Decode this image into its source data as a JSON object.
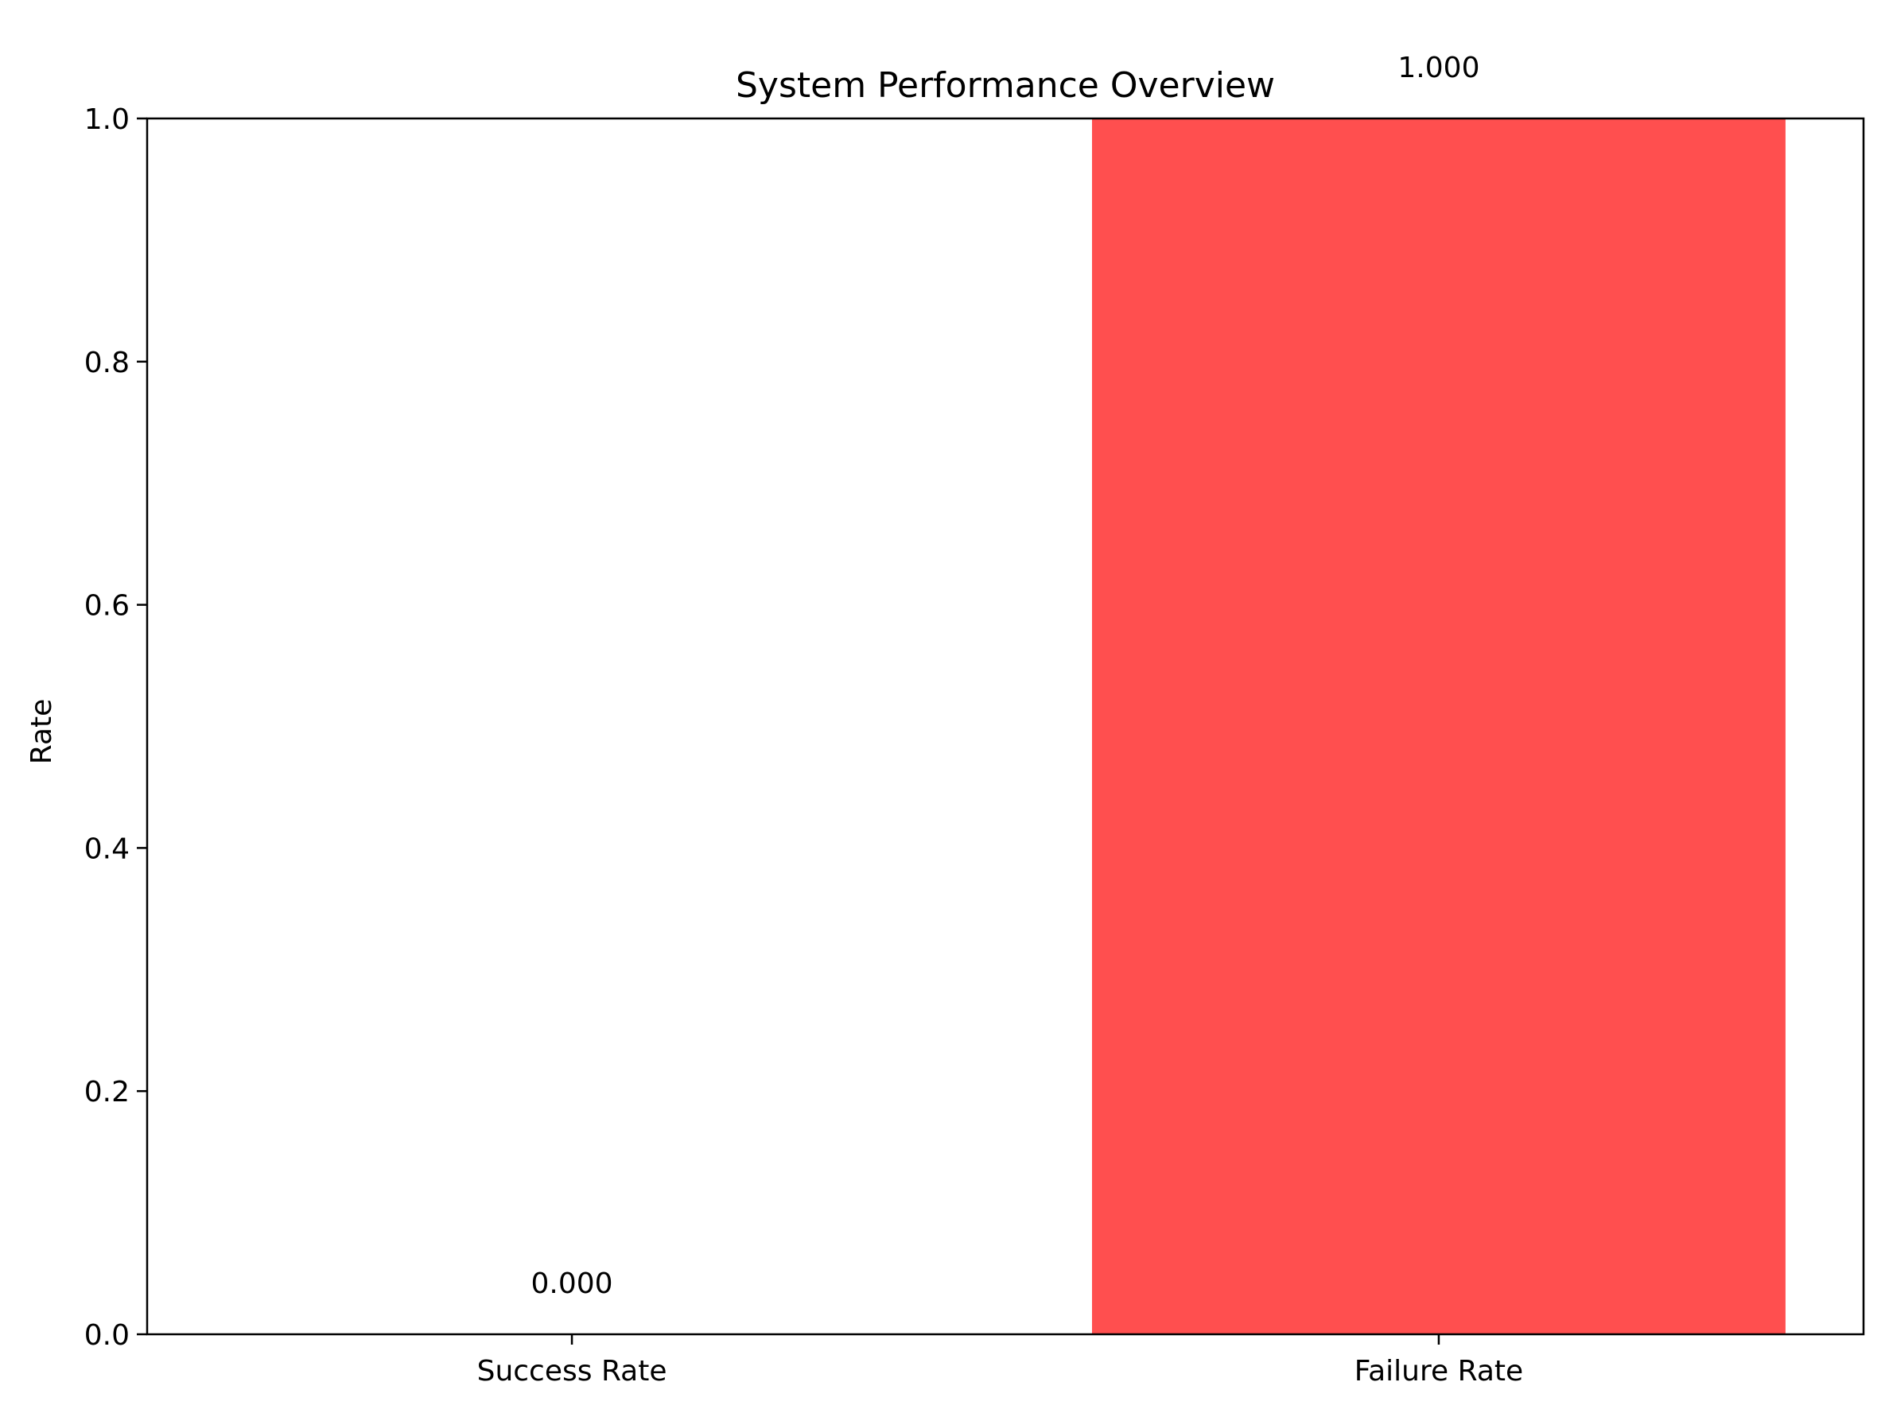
{
  "chart_data": {
    "type": "bar",
    "title": "System Performance Overview",
    "xlabel": "",
    "ylabel": "Rate",
    "categories": [
      "Success Rate",
      "Failure Rate"
    ],
    "values": [
      0.0,
      1.0
    ],
    "value_labels": [
      "0.000",
      "1.000"
    ],
    "bar_colors": [
      "#4CAF50",
      "#FF4F4F"
    ],
    "ylim": [
      0,
      1.0
    ],
    "yticks": [
      0.0,
      0.2,
      0.4,
      0.6,
      0.8,
      1.0
    ],
    "ytick_labels": [
      "0.0",
      "0.2",
      "0.4",
      "0.6",
      "0.8",
      "1.0"
    ],
    "grid": false,
    "legend": "none"
  }
}
